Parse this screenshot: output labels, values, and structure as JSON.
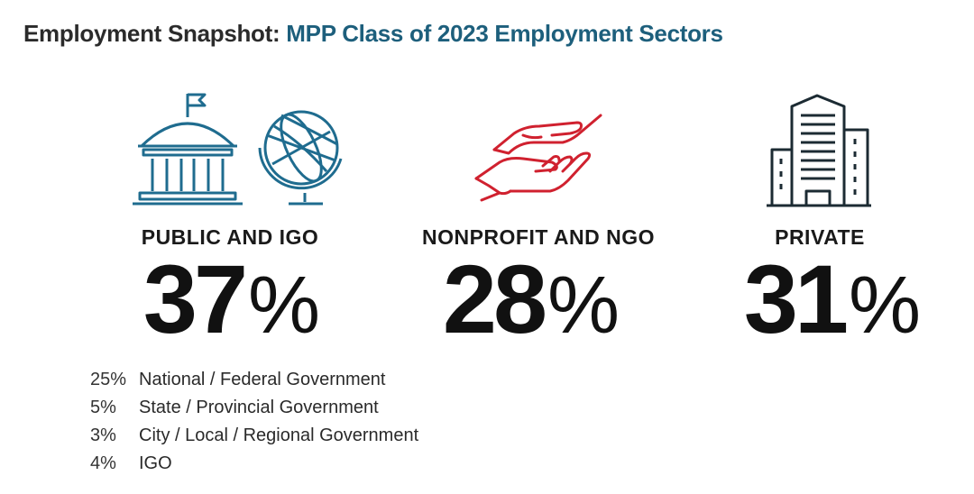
{
  "header": {
    "title_prefix": "Employment Snapshot:",
    "title_accent": "MPP Class of 2023 Employment Sectors"
  },
  "colors": {
    "public_icon": "#1f6c8f",
    "nonprofit_icon": "#d0212f",
    "private_icon": "#1c2b33",
    "title_accent": "#1d5f7c"
  },
  "chart_data": {
    "type": "table",
    "title": "Employment Snapshot: MPP Class of 2023 Employment Sectors",
    "categories": [
      "PUBLIC AND IGO",
      "NONPROFIT AND NGO",
      "PRIVATE"
    ],
    "values": [
      37,
      28,
      31
    ],
    "unit": "%",
    "breakdown": {
      "category": "PUBLIC AND IGO",
      "items": [
        {
          "label": "National / Federal Government",
          "value": 25
        },
        {
          "label": "State / Provincial Government",
          "value": 5
        },
        {
          "label": "City / Local / Regional Government",
          "value": 3
        },
        {
          "label": "IGO",
          "value": 4
        }
      ]
    }
  },
  "sectors": [
    {
      "label": "PUBLIC AND IGO",
      "value": "37",
      "sign": "%",
      "icon": "capitol-and-globe-icon"
    },
    {
      "label": "NONPROFIT AND NGO",
      "value": "28",
      "sign": "%",
      "icon": "helping-hands-icon"
    },
    {
      "label": "PRIVATE",
      "value": "31",
      "sign": "%",
      "icon": "office-building-icon"
    }
  ],
  "breakdown": [
    {
      "pct": "25%",
      "label": "National / Federal Government"
    },
    {
      "pct": "5%",
      "label": "State / Provincial Government"
    },
    {
      "pct": "3%",
      "label": "City / Local / Regional Government"
    },
    {
      "pct": "4%",
      "label": "IGO"
    }
  ]
}
